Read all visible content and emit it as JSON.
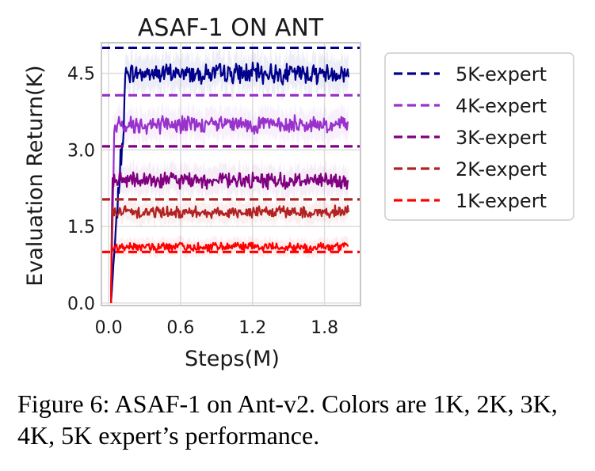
{
  "chart_data": {
    "type": "line",
    "title": "ASAF-1 ON ANT",
    "xlabel": "Steps(M)",
    "ylabel": "Evaluation Return(K)",
    "xlim": [
      -0.06,
      2.1
    ],
    "ylim": [
      -0.05,
      5.1
    ],
    "xticks": [
      "0.0",
      "0.6",
      "1.2",
      "1.8"
    ],
    "xtick_values": [
      0.0,
      0.6,
      1.2,
      1.8
    ],
    "yticks": [
      "0.0",
      "1.5",
      "3.0",
      "4.5"
    ],
    "ytick_values": [
      0.0,
      1.5,
      3.0,
      4.5
    ],
    "grid": true,
    "legend_position": "outside right",
    "expert_levels": [
      {
        "name": "5K-expert",
        "value": 5.0,
        "color": "#00008b"
      },
      {
        "name": "4K-expert",
        "value": 4.07,
        "color": "#9932cc"
      },
      {
        "name": "3K-expert",
        "value": 3.07,
        "color": "#800080"
      },
      {
        "name": "2K-expert",
        "value": 2.03,
        "color": "#b22222"
      },
      {
        "name": "1K-expert",
        "value": 1.0,
        "color": "#ff0000"
      }
    ],
    "series": [
      {
        "color": "#00008b",
        "x_end": 2.0,
        "rise_at": 0.15,
        "plateau": 4.5,
        "noise": 0.15
      },
      {
        "color": "#9932cc",
        "x_end": 2.0,
        "rise_at": 0.05,
        "plateau": 3.5,
        "noise": 0.13
      },
      {
        "color": "#800080",
        "x_end": 2.0,
        "rise_at": 0.03,
        "plateau": 2.4,
        "noise": 0.12
      },
      {
        "color": "#b22222",
        "x_end": 2.0,
        "rise_at": 0.03,
        "plateau": 1.78,
        "noise": 0.09
      },
      {
        "color": "#ff0000",
        "x_end": 2.0,
        "rise_at": 0.02,
        "plateau": 1.1,
        "noise": 0.07
      }
    ]
  },
  "caption": {
    "text": "Figure 6: ASAF-1 on Ant-v2. Colors are 1K, 2K, 3K, 4K, 5K expert’s performance."
  }
}
